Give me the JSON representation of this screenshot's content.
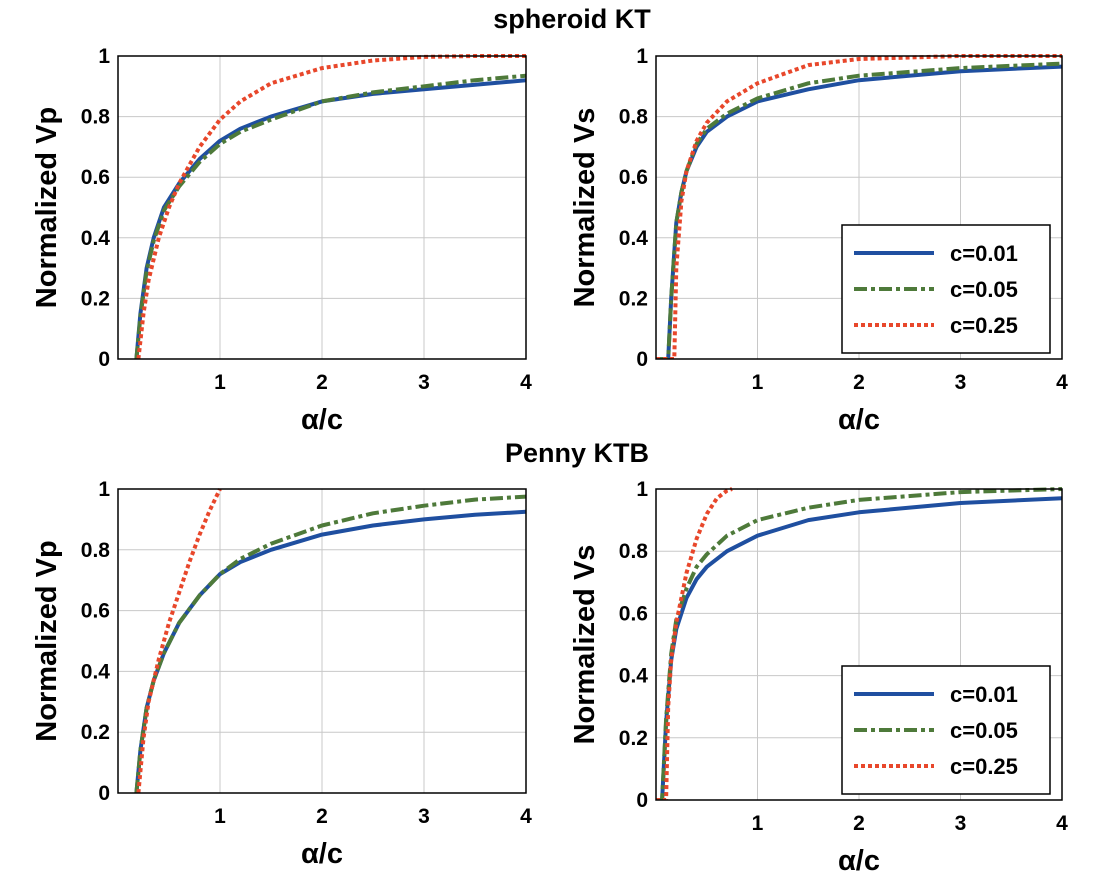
{
  "figure": {
    "titles": [
      "spheroid KT",
      "Penny KTB"
    ]
  },
  "chart_data": [
    {
      "type": "line",
      "section": "spheroid KT",
      "xlabel": "α/c",
      "ylabel": "Normalized Vp",
      "xlim": [
        0,
        4
      ],
      "ylim": [
        0,
        1
      ],
      "xticks": [
        "1",
        "2",
        "3",
        "4"
      ],
      "yticks": [
        "0",
        "0.2",
        "0.4",
        "0.6",
        "0.8",
        "1"
      ],
      "grid": true,
      "legend": null,
      "series": [
        {
          "name": "c=0.01",
          "x": [
            0.18,
            0.22,
            0.28,
            0.35,
            0.45,
            0.6,
            0.8,
            1.0,
            1.2,
            1.5,
            2.0,
            2.5,
            3.0,
            3.5,
            4.0
          ],
          "y": [
            0.0,
            0.15,
            0.3,
            0.4,
            0.5,
            0.58,
            0.66,
            0.72,
            0.76,
            0.8,
            0.85,
            0.875,
            0.89,
            0.905,
            0.92
          ]
        },
        {
          "name": "c=0.05",
          "x": [
            0.18,
            0.22,
            0.28,
            0.35,
            0.45,
            0.6,
            0.8,
            1.0,
            1.2,
            1.5,
            2.0,
            2.5,
            3.0,
            3.5,
            4.0
          ],
          "y": [
            0.0,
            0.14,
            0.29,
            0.39,
            0.49,
            0.57,
            0.65,
            0.71,
            0.75,
            0.79,
            0.85,
            0.88,
            0.9,
            0.92,
            0.935
          ]
        },
        {
          "name": "c=0.25",
          "x": [
            0.2,
            0.25,
            0.3,
            0.4,
            0.5,
            0.6,
            0.8,
            1.0,
            1.2,
            1.5,
            2.0,
            2.5,
            3.0,
            3.5,
            4.0
          ],
          "y": [
            0.0,
            0.15,
            0.26,
            0.4,
            0.5,
            0.58,
            0.7,
            0.79,
            0.85,
            0.91,
            0.96,
            0.985,
            0.997,
            1.0,
            1.0
          ]
        }
      ]
    },
    {
      "type": "line",
      "section": "spheroid KT",
      "xlabel": "α/c",
      "ylabel": "Normalized Vs",
      "xlim": [
        0,
        4
      ],
      "ylim": [
        0,
        1
      ],
      "xticks": [
        "1",
        "2",
        "3",
        "4"
      ],
      "yticks": [
        "0",
        "0.2",
        "0.4",
        "0.6",
        "0.8",
        "1"
      ],
      "grid": true,
      "legend": "right",
      "series": [
        {
          "name": "c=0.01",
          "x": [
            0.0,
            0.12,
            0.15,
            0.2,
            0.25,
            0.3,
            0.4,
            0.5,
            0.7,
            1.0,
            1.5,
            2.0,
            3.0,
            4.0
          ],
          "y": [
            0.0,
            0.0,
            0.2,
            0.45,
            0.55,
            0.62,
            0.7,
            0.75,
            0.8,
            0.85,
            0.89,
            0.92,
            0.95,
            0.965
          ]
        },
        {
          "name": "c=0.05",
          "x": [
            0.0,
            0.12,
            0.15,
            0.2,
            0.25,
            0.3,
            0.4,
            0.5,
            0.7,
            1.0,
            1.5,
            2.0,
            3.0,
            4.0
          ],
          "y": [
            0.0,
            0.0,
            0.2,
            0.45,
            0.55,
            0.62,
            0.71,
            0.76,
            0.81,
            0.86,
            0.91,
            0.935,
            0.96,
            0.975
          ]
        },
        {
          "name": "c=0.25",
          "x": [
            0.0,
            0.18,
            0.2,
            0.25,
            0.3,
            0.4,
            0.5,
            0.7,
            1.0,
            1.5,
            2.0,
            3.0,
            4.0
          ],
          "y": [
            0.0,
            0.0,
            0.3,
            0.52,
            0.62,
            0.72,
            0.78,
            0.85,
            0.91,
            0.97,
            0.99,
            1.0,
            1.0
          ]
        }
      ]
    },
    {
      "type": "line",
      "section": "Penny KTB",
      "xlabel": "α/c",
      "ylabel": "Normalized Vp",
      "xlim": [
        0,
        4
      ],
      "ylim": [
        0,
        1
      ],
      "xticks": [
        "1",
        "2",
        "3",
        "4"
      ],
      "yticks": [
        "0",
        "0.2",
        "0.4",
        "0.6",
        "0.8",
        "1"
      ],
      "grid": true,
      "legend": null,
      "series": [
        {
          "name": "c=0.01",
          "x": [
            0.18,
            0.22,
            0.28,
            0.35,
            0.45,
            0.6,
            0.8,
            1.0,
            1.2,
            1.5,
            2.0,
            2.5,
            3.0,
            3.5,
            4.0
          ],
          "y": [
            0.0,
            0.14,
            0.28,
            0.37,
            0.46,
            0.56,
            0.65,
            0.72,
            0.76,
            0.8,
            0.85,
            0.88,
            0.9,
            0.915,
            0.925
          ]
        },
        {
          "name": "c=0.05",
          "x": [
            0.18,
            0.22,
            0.28,
            0.35,
            0.45,
            0.6,
            0.8,
            1.0,
            1.2,
            1.5,
            2.0,
            2.5,
            3.0,
            3.5,
            4.0
          ],
          "y": [
            0.0,
            0.14,
            0.28,
            0.37,
            0.46,
            0.56,
            0.65,
            0.72,
            0.77,
            0.82,
            0.88,
            0.92,
            0.945,
            0.965,
            0.975
          ]
        },
        {
          "name": "c=0.25",
          "x": [
            0.2,
            0.25,
            0.3,
            0.4,
            0.5,
            0.6,
            0.7,
            0.8,
            0.9,
            1.0
          ],
          "y": [
            0.0,
            0.18,
            0.3,
            0.44,
            0.56,
            0.66,
            0.76,
            0.85,
            0.93,
            1.0
          ]
        }
      ]
    },
    {
      "type": "line",
      "section": "Penny KTB",
      "xlabel": "α/c",
      "ylabel": "Normalized Vs",
      "xlim": [
        0,
        4
      ],
      "ylim": [
        0,
        1
      ],
      "xticks": [
        "1",
        "2",
        "3",
        "4"
      ],
      "yticks": [
        "0",
        "0.2",
        "0.4",
        "0.6",
        "0.8",
        "1"
      ],
      "grid": true,
      "legend": "right",
      "series": [
        {
          "name": "c=0.01",
          "x": [
            0.0,
            0.06,
            0.1,
            0.15,
            0.2,
            0.3,
            0.4,
            0.5,
            0.7,
            1.0,
            1.5,
            2.0,
            3.0,
            4.0
          ],
          "y": [
            0.0,
            0.0,
            0.25,
            0.45,
            0.55,
            0.65,
            0.71,
            0.75,
            0.8,
            0.85,
            0.9,
            0.925,
            0.955,
            0.97
          ]
        },
        {
          "name": "c=0.05",
          "x": [
            0.0,
            0.06,
            0.1,
            0.15,
            0.2,
            0.3,
            0.4,
            0.5,
            0.7,
            1.0,
            1.5,
            2.0,
            3.0,
            4.0
          ],
          "y": [
            0.0,
            0.0,
            0.26,
            0.47,
            0.58,
            0.68,
            0.75,
            0.79,
            0.85,
            0.9,
            0.94,
            0.965,
            0.99,
            1.0
          ]
        },
        {
          "name": "c=0.25",
          "x": [
            0.0,
            0.1,
            0.12,
            0.15,
            0.2,
            0.3,
            0.4,
            0.5,
            0.6,
            0.7,
            0.75
          ],
          "y": [
            0.0,
            0.0,
            0.3,
            0.45,
            0.57,
            0.73,
            0.84,
            0.92,
            0.97,
            0.995,
            1.0
          ]
        }
      ]
    }
  ]
}
